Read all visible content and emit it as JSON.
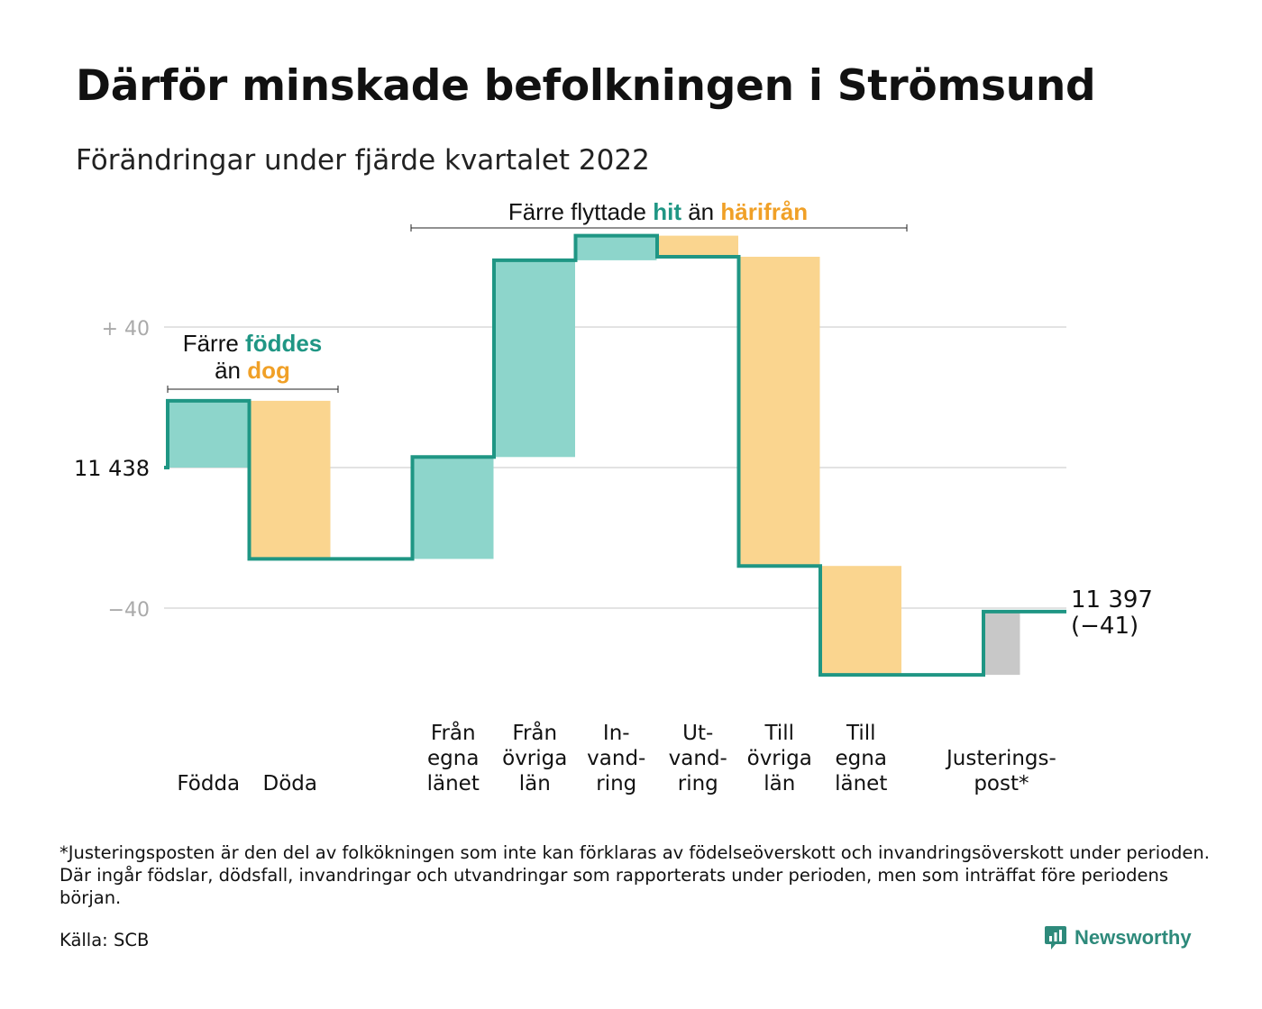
{
  "title": "Därför minskade befolkningen i Strömsund",
  "subtitle": "Förändringar under fjärde kvartalet 2022",
  "footnote": "*Justeringsposten är den del av folkökningen som inte kan förklaras av födelseöverskott och invandringsöverskott under perioden. Där ingår födslar, dödsfall, invandringar och utvandringar som rapporterats under perioden, men som inträffat före periodens början.",
  "source": "Källa: SCB",
  "brand": "Newsworthy",
  "colors": {
    "increase": "#8dd5cb",
    "decrease": "#fad58f",
    "adjustment": "#c8c8c8",
    "line": "#1f9684",
    "teal_text": "#1f9684",
    "orange_text": "#f0a027",
    "grid": "#e3e3e3"
  },
  "annotations": {
    "births_deaths": {
      "line1_pre": "Färre ",
      "line1_hl": "föddes",
      "line2_pre": "än ",
      "line2_hl": "dog"
    },
    "migration": {
      "pre": "Färre flyttade ",
      "hl1": "hit",
      "mid": " än ",
      "hl2": "härifrån"
    }
  },
  "chart_data": {
    "type": "waterfall",
    "start_value": 11438,
    "start_label": "11 438",
    "end_value": 11397,
    "end_label": "11 397",
    "end_change_label": "(−41)",
    "yticks": [
      {
        "value": 40,
        "label": "+ 40"
      },
      {
        "value": 0,
        "label": "11 438"
      },
      {
        "value": -40,
        "label": "−40"
      }
    ],
    "ylim": [
      -62,
      66
    ],
    "grid": true,
    "steps": [
      {
        "label": [
          "Födda"
        ],
        "change": 19,
        "kind": "increase"
      },
      {
        "label": [
          "Döda"
        ],
        "change": -45,
        "kind": "decrease"
      },
      {
        "label": [],
        "change": 0,
        "kind": "none"
      },
      {
        "label": [
          "Från",
          "egna",
          "länet"
        ],
        "change": 29,
        "kind": "increase"
      },
      {
        "label": [
          "Från",
          "övriga",
          "län"
        ],
        "change": 56,
        "kind": "increase"
      },
      {
        "label": [
          "In-",
          "vand-",
          "ring"
        ],
        "change": 7,
        "kind": "increase"
      },
      {
        "label": [
          "Ut-",
          "vand-",
          "ring"
        ],
        "change": -6,
        "kind": "decrease"
      },
      {
        "label": [
          "Till",
          "övriga",
          "län"
        ],
        "change": -88,
        "kind": "decrease"
      },
      {
        "label": [
          "Till",
          "egna",
          "länet"
        ],
        "change": -31,
        "kind": "decrease"
      },
      {
        "label": [],
        "change": 0,
        "kind": "none"
      },
      {
        "label": [
          "Justerings-",
          "post*"
        ],
        "change": 18,
        "kind": "adjustment"
      }
    ]
  }
}
